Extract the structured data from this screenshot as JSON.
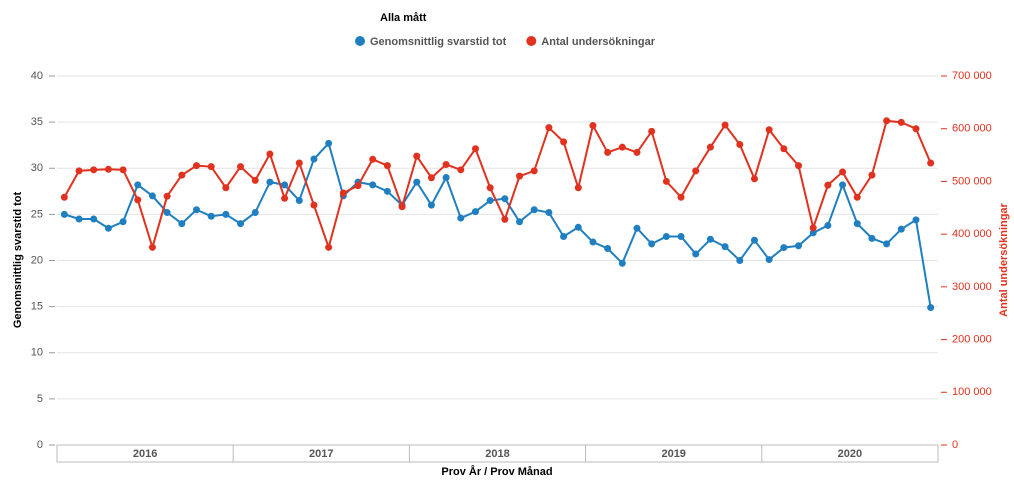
{
  "chart_data": {
    "type": "line",
    "legend_title": "Alla mått",
    "xlabel": "Prov År / Prov Månad",
    "ylabel": "Genomsnittlig svarstid tot",
    "y2label": "Antal undersökningar",
    "categories": [
      null,
      null,
      null,
      null,
      null,
      null,
      null,
      null,
      null,
      null,
      null,
      null,
      null,
      null,
      null,
      null,
      null,
      null,
      null,
      null,
      null,
      null,
      null,
      null,
      null,
      null,
      null,
      null,
      null,
      null,
      null,
      null,
      null,
      null,
      null,
      null,
      null,
      null,
      null,
      null,
      null,
      null,
      null,
      null,
      null,
      null,
      null,
      null,
      null,
      null,
      null,
      null,
      null,
      null,
      null,
      null,
      null,
      null,
      null,
      null
    ],
    "category_groups": [
      "2016",
      "2017",
      "2018",
      "2019",
      "2020"
    ],
    "series": [
      {
        "name": "Genomsnittlig svarstid tot",
        "color": "#1f7fc0",
        "axis": "y",
        "values": [
          25.0,
          24.5,
          24.5,
          23.5,
          24.2,
          28.2,
          27.0,
          25.2,
          24.0,
          25.5,
          24.8,
          25.0,
          24.0,
          25.2,
          28.5,
          28.2,
          26.5,
          31.0,
          32.7,
          27.0,
          28.5,
          28.2,
          27.5,
          26.0,
          28.5,
          26.0,
          29.0,
          24.6,
          25.3,
          26.5,
          26.7,
          24.2,
          25.5,
          25.2,
          22.6,
          23.6,
          22.0,
          21.3,
          19.7,
          23.5,
          21.8,
          22.6,
          22.6,
          20.7,
          22.3,
          21.5,
          20.0,
          22.2,
          20.1,
          21.4,
          21.6,
          23.0,
          23.8,
          28.2,
          24.0,
          22.4,
          21.8,
          23.4,
          24.4,
          14.9
        ]
      },
      {
        "name": "Antal undersökningar",
        "color": "#e0321e",
        "axis": "y2",
        "values": [
          470000,
          520000,
          522000,
          523000,
          522000,
          465000,
          375000,
          472000,
          512000,
          530000,
          528000,
          488000,
          528000,
          502000,
          552000,
          468000,
          535000,
          455000,
          375000,
          478000,
          492000,
          542000,
          530000,
          452000,
          548000,
          507000,
          532000,
          522000,
          562000,
          488000,
          428000,
          510000,
          520000,
          602000,
          575000,
          488000,
          606000,
          555000,
          565000,
          555000,
          595000,
          500000,
          470000,
          520000,
          565000,
          607000,
          570000,
          505000,
          598000,
          562000,
          530000,
          412000,
          493000,
          518000,
          470000,
          512000,
          615000,
          612000,
          600000,
          535000
        ]
      }
    ],
    "ylim": [
      0,
      40
    ],
    "yticks": [
      0,
      5,
      10,
      15,
      20,
      25,
      30,
      35,
      40
    ],
    "y2lim": [
      0,
      700000
    ],
    "y2ticks": [
      {
        "value": 0,
        "label": "0"
      },
      {
        "value": 100000,
        "label": "100 000"
      },
      {
        "value": 200000,
        "label": "200 000"
      },
      {
        "value": 300000,
        "label": "300 000"
      },
      {
        "value": 400000,
        "label": "400 000"
      },
      {
        "value": 500000,
        "label": "500 000"
      },
      {
        "value": 600000,
        "label": "600 000"
      },
      {
        "value": 700000,
        "label": "700 000"
      }
    ],
    "grid": true
  }
}
